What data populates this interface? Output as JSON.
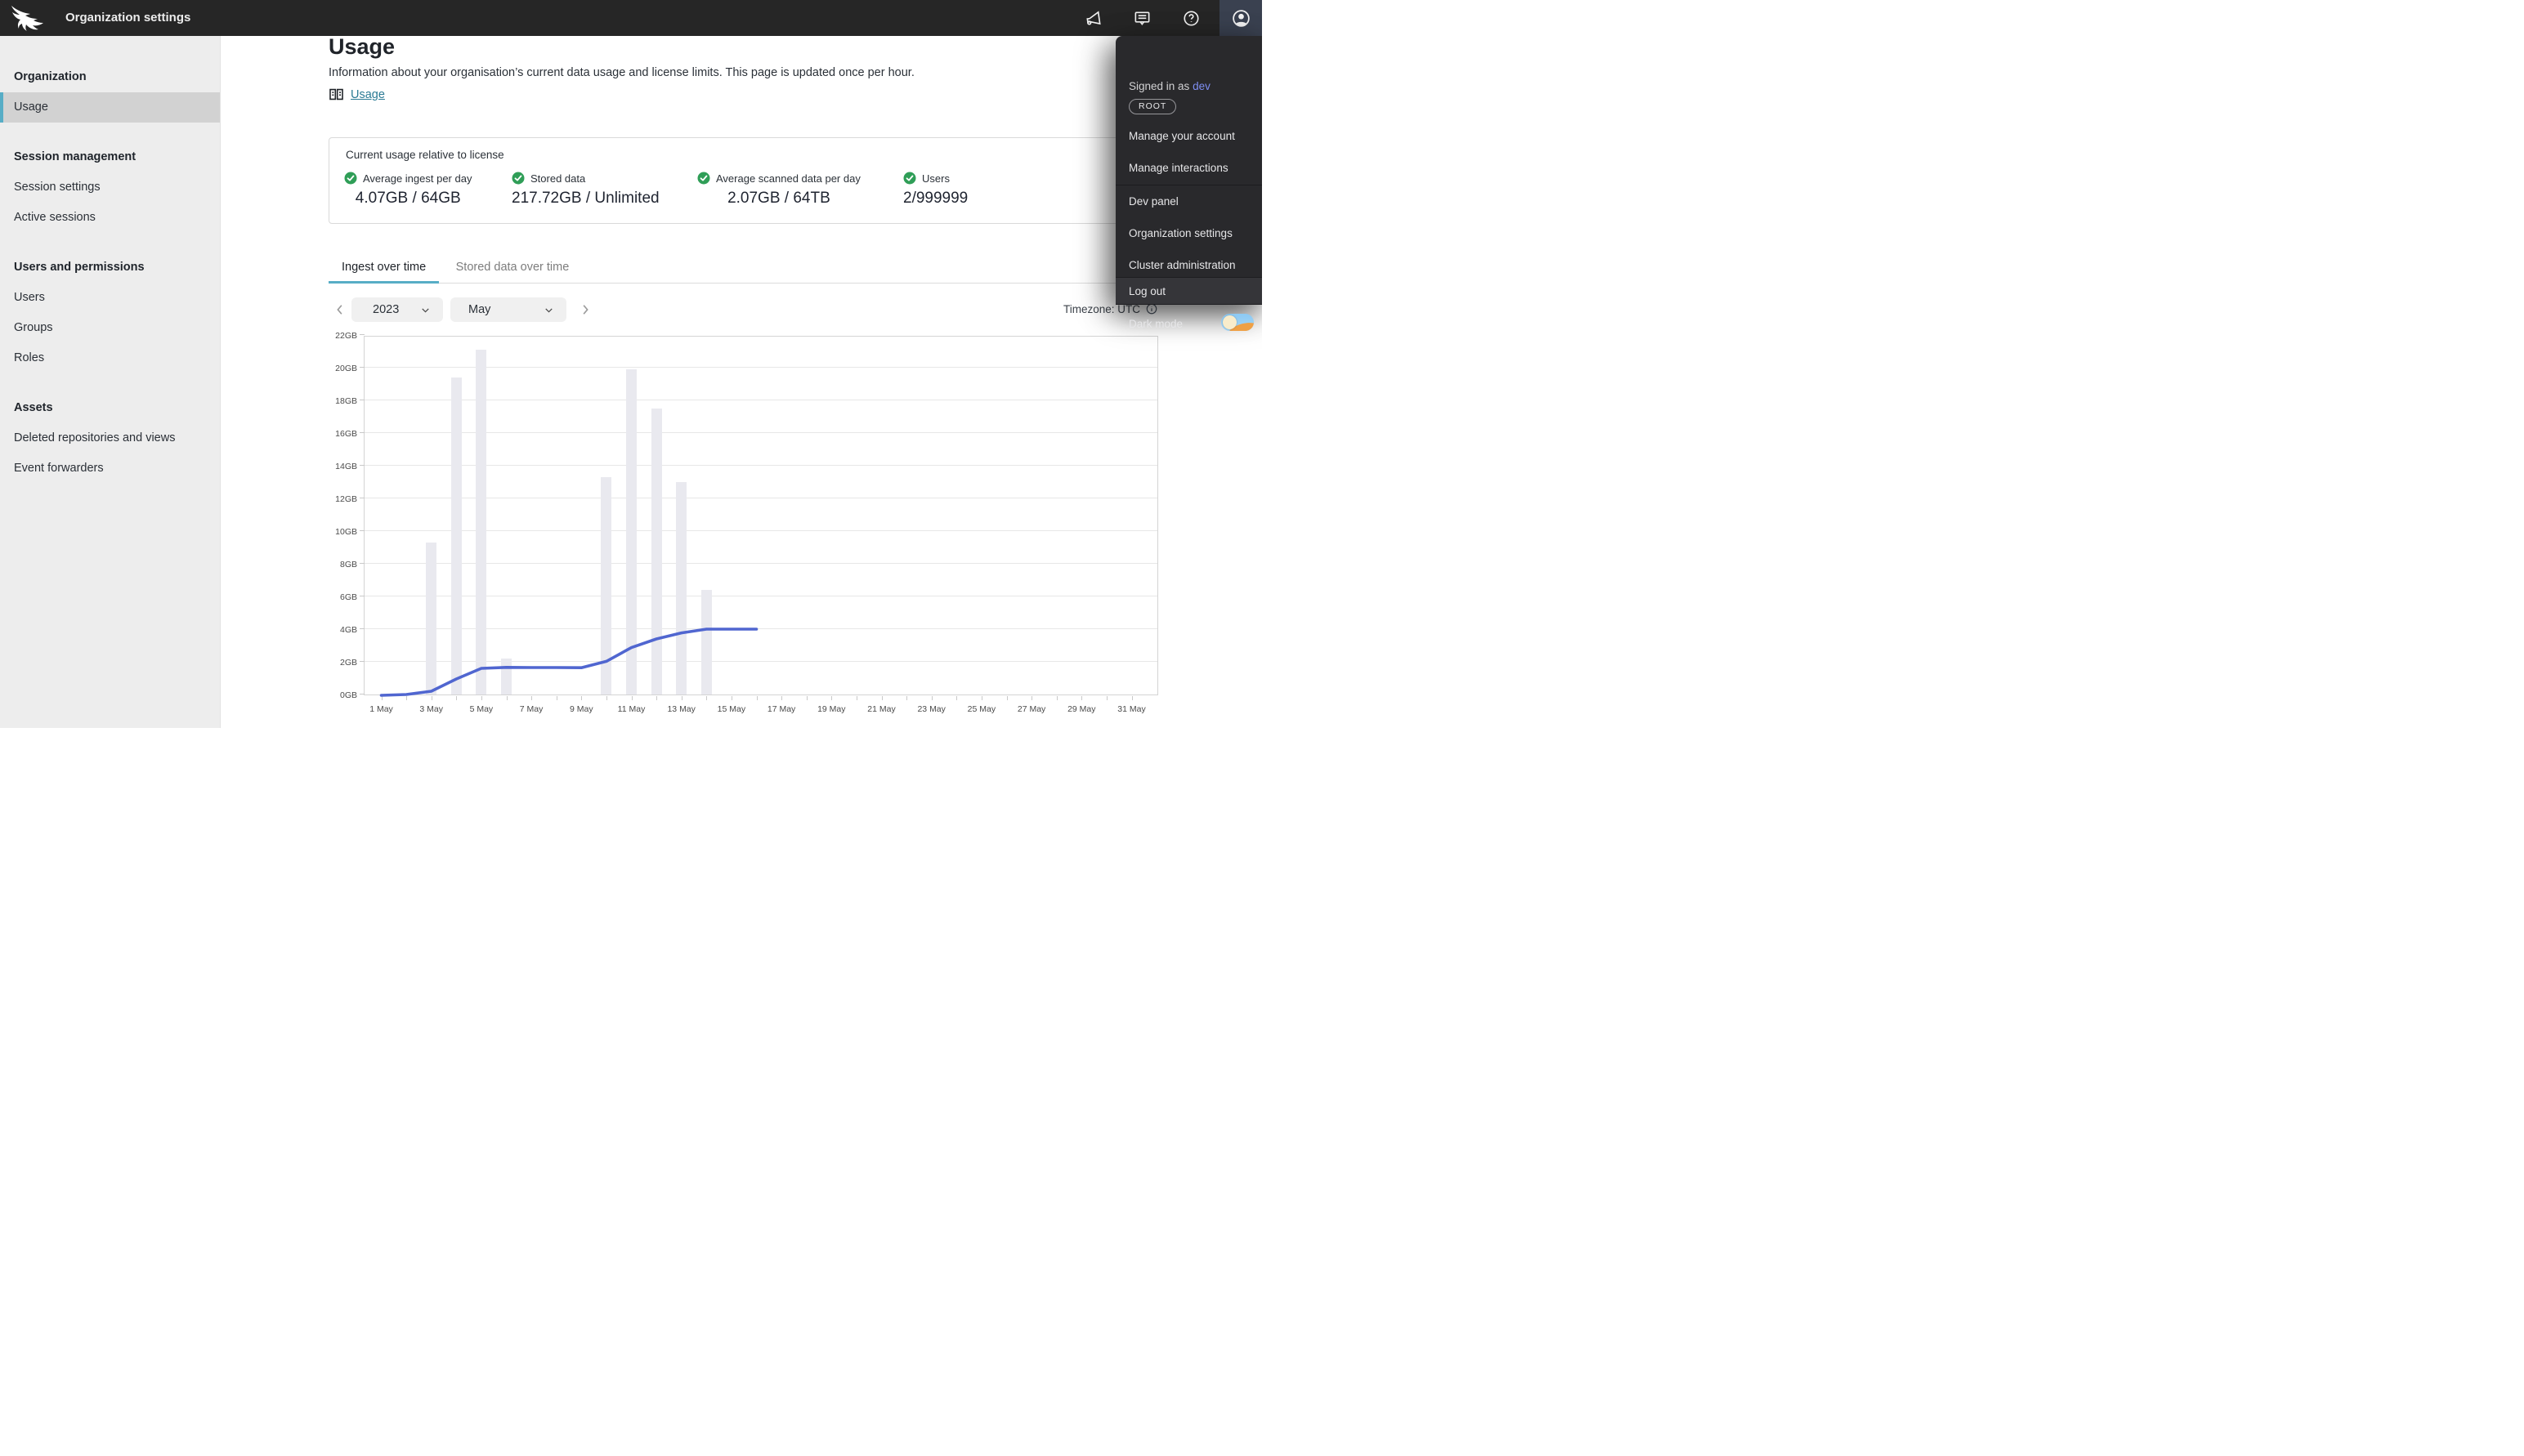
{
  "topbar": {
    "title": "Organization settings",
    "icons": [
      "falcon-logo-icon",
      "megaphone-icon",
      "chat-icon",
      "help-icon",
      "avatar-icon"
    ]
  },
  "sidebar": {
    "sections": [
      {
        "header": "Organization",
        "items": [
          {
            "label": "Usage",
            "selected": true
          }
        ]
      },
      {
        "header": "Session management",
        "items": [
          {
            "label": "Session settings"
          },
          {
            "label": "Active sessions"
          }
        ]
      },
      {
        "header": "Users and permissions",
        "items": [
          {
            "label": "Users"
          },
          {
            "label": "Groups"
          },
          {
            "label": "Roles"
          }
        ]
      },
      {
        "header": "Assets",
        "items": [
          {
            "label": "Deleted repositories and views"
          },
          {
            "label": "Event forwarders"
          }
        ]
      }
    ]
  },
  "page": {
    "title": "Usage",
    "description": "Information about your organisation’s current data usage and license limits. This page is updated once per hour.",
    "doc_link_label": "Usage"
  },
  "license_panel": {
    "title": "Current usage relative to license",
    "stats": [
      {
        "label": "Average ingest per day",
        "value": "4.07GB / 64GB",
        "status_icon": "check-icon"
      },
      {
        "label": "Stored data",
        "value": "217.72GB / Unlimited",
        "status_icon": "check-icon"
      },
      {
        "label": "Average scanned data per day",
        "value": "2.07GB / 64TB",
        "status_icon": "check-icon"
      },
      {
        "label": "Users",
        "value": "2/999999",
        "status_icon": "check-icon"
      }
    ]
  },
  "tabs": [
    {
      "label": "Ingest over time",
      "active": true
    },
    {
      "label": "Stored data over time",
      "active": false
    }
  ],
  "controls": {
    "year": "2023",
    "month": "May",
    "timezone_label": "Timezone: UTC"
  },
  "user_menu": {
    "signed_in_prefix": "Signed in as",
    "username": "dev",
    "role_badge": "ROOT",
    "items": [
      "Manage your account",
      "Manage interactions",
      "Dev panel",
      "Organization settings",
      "Cluster administration",
      "Log out"
    ],
    "highlighted_item": "Log out",
    "dark_mode_label": "Dark mode",
    "dark_mode_on": false
  },
  "colors": {
    "accent_teal": "#57adc6",
    "link_teal": "#2c7b95",
    "status_green": "#2f9e57",
    "topbar_bg": "#262626",
    "menu_bg": "#29292c"
  },
  "chart_data": {
    "type": "bar+line",
    "title": "Ingest over time — May 2023",
    "xlabel": "",
    "ylabel": "",
    "ylim": [
      0,
      22
    ],
    "y_unit": "GB",
    "y_tick_labels": [
      "0GB",
      "2GB",
      "4GB",
      "6GB",
      "8GB",
      "10GB",
      "12GB",
      "14GB",
      "16GB",
      "18GB",
      "20GB",
      "22GB"
    ],
    "x_range_days": [
      1,
      31
    ],
    "x_tick_labels": [
      "1 May",
      "3 May",
      "5 May",
      "7 May",
      "9 May",
      "11 May",
      "13 May",
      "15 May",
      "17 May",
      "19 May",
      "21 May",
      "23 May",
      "25 May",
      "27 May",
      "29 May",
      "31 May"
    ],
    "grid": true,
    "legend": false,
    "bars": {
      "name": "Daily ingest (GB)",
      "color": "#e9e9ef",
      "points": [
        {
          "day": 3,
          "gb": 9.3
        },
        {
          "day": 4,
          "gb": 19.4
        },
        {
          "day": 5,
          "gb": 21.1
        },
        {
          "day": 6,
          "gb": 2.2
        },
        {
          "day": 10,
          "gb": 13.3
        },
        {
          "day": 11,
          "gb": 19.9
        },
        {
          "day": 12,
          "gb": 17.5
        },
        {
          "day": 13,
          "gb": 13.0
        },
        {
          "day": 14,
          "gb": 6.4
        }
      ]
    },
    "line": {
      "name": "Average ingest per day (GB)",
      "color": "#5066d0",
      "points": [
        {
          "day": 1,
          "gb": 0.05
        },
        {
          "day": 2,
          "gb": 0.1
        },
        {
          "day": 3,
          "gb": 0.3
        },
        {
          "day": 4,
          "gb": 1.05
        },
        {
          "day": 5,
          "gb": 1.7
        },
        {
          "day": 6,
          "gb": 1.76
        },
        {
          "day": 7,
          "gb": 1.75
        },
        {
          "day": 8,
          "gb": 1.75
        },
        {
          "day": 9,
          "gb": 1.74
        },
        {
          "day": 10,
          "gb": 2.13
        },
        {
          "day": 11,
          "gb": 2.97
        },
        {
          "day": 12,
          "gb": 3.5
        },
        {
          "day": 13,
          "gb": 3.87
        },
        {
          "day": 14,
          "gb": 4.1
        },
        {
          "day": 15,
          "gb": 4.1
        },
        {
          "day": 16,
          "gb": 4.1
        }
      ]
    }
  }
}
